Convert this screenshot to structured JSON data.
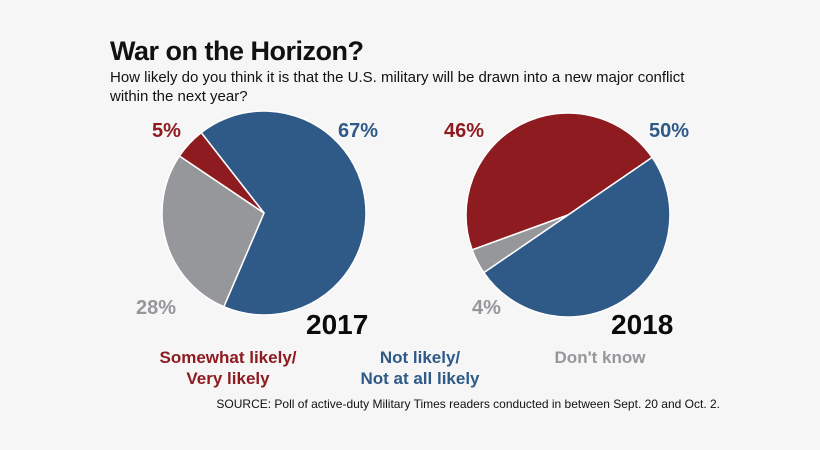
{
  "header": {
    "title": "War on the Horizon?",
    "subtitle": "How likely do you think it is that the U.S. military will be drawn into a new major conflict within the next year?"
  },
  "colors": {
    "likely": "#8e1b20",
    "not_likely": "#2f5a87",
    "dont_know": "#96979b"
  },
  "chart_data": [
    {
      "type": "pie",
      "title": "2017",
      "categories": [
        "Somewhat likely/ Very likely",
        "Not likely/ Not at all likely",
        "Don't know"
      ],
      "values": [
        5,
        67,
        28
      ],
      "labels": [
        "5%",
        "67%",
        "28%"
      ]
    },
    {
      "type": "pie",
      "title": "2018",
      "categories": [
        "Somewhat likely/ Very likely",
        "Not likely/ Not at all likely",
        "Don't know"
      ],
      "values": [
        46,
        50,
        4
      ],
      "labels": [
        "46%",
        "50%",
        "4%"
      ]
    }
  ],
  "legend": [
    {
      "line1": "Somewhat likely/",
      "line2": "Very likely",
      "color": "#8e1b20"
    },
    {
      "line1": "Not likely/",
      "line2": "Not at all likely",
      "color": "#2f5a87"
    },
    {
      "line1": "Don't know",
      "line2": "",
      "color": "#96979b"
    }
  ],
  "source": "SOURCE: Poll of active-duty Military Times readers conducted in between Sept. 20 and Oct. 2."
}
